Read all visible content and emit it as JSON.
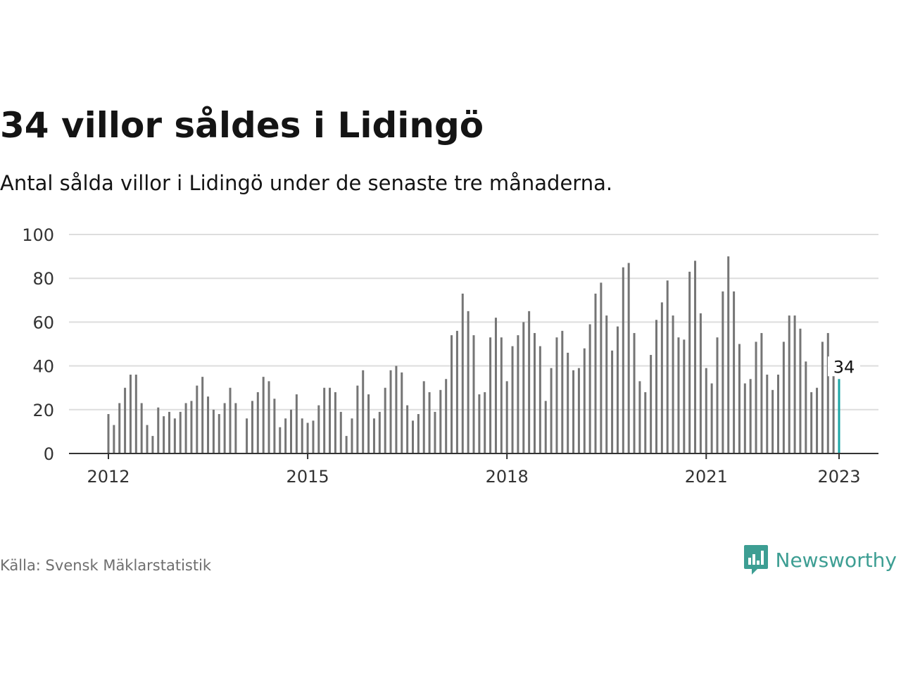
{
  "header": {
    "title": "34 villor såldes i Lidingö",
    "subtitle": "Antal sålda villor i Lidingö under de senaste tre månaderna."
  },
  "footer": {
    "source": "Källa: Svensk Mäklarstatistik",
    "brand": "Newsworthy"
  },
  "colors": {
    "bar": "#757575",
    "highlight": "#1aa5a5",
    "grid": "#dddddd",
    "axis": "#333333",
    "brand": "#3d9e93"
  },
  "icons": {
    "logo": "newsworthy-chat-bars-icon"
  },
  "chart_data": {
    "type": "bar",
    "title": "34 villor såldes i Lidingö",
    "subtitle": "Antal sålda villor i Lidingö under de senaste tre månaderna.",
    "xlabel": "",
    "ylabel": "",
    "ylim": [
      0,
      100
    ],
    "yticks": [
      0,
      20,
      40,
      60,
      80,
      100
    ],
    "x_tick_labels": [
      "2012",
      "2015",
      "2018",
      "2021",
      "2023"
    ],
    "x_start": "2012-01",
    "x_end": "2023-01",
    "grid": true,
    "highlight_label": "34",
    "values": [
      18,
      13,
      23,
      30,
      36,
      36,
      23,
      13,
      8,
      21,
      17,
      19,
      16,
      19,
      23,
      24,
      31,
      35,
      26,
      20,
      18,
      23,
      30,
      23,
      0,
      16,
      24,
      28,
      35,
      33,
      25,
      12,
      16,
      20,
      27,
      16,
      14,
      15,
      22,
      30,
      30,
      28,
      19,
      8,
      16,
      31,
      38,
      27,
      16,
      19,
      30,
      38,
      40,
      37,
      22,
      15,
      18,
      33,
      28,
      19,
      29,
      34,
      54,
      56,
      73,
      65,
      54,
      27,
      28,
      53,
      62,
      53,
      33,
      49,
      54,
      60,
      65,
      55,
      49,
      24,
      39,
      53,
      56,
      46,
      38,
      39,
      48,
      59,
      73,
      78,
      63,
      47,
      58,
      85,
      87,
      55,
      33,
      28,
      45,
      61,
      69,
      79,
      63,
      53,
      52,
      83,
      88,
      64,
      39,
      32,
      53,
      74,
      90,
      74,
      50,
      32,
      34,
      51,
      55,
      36,
      29,
      36,
      51,
      63,
      63,
      57,
      42,
      28,
      30,
      51,
      55,
      38,
      34
    ]
  }
}
